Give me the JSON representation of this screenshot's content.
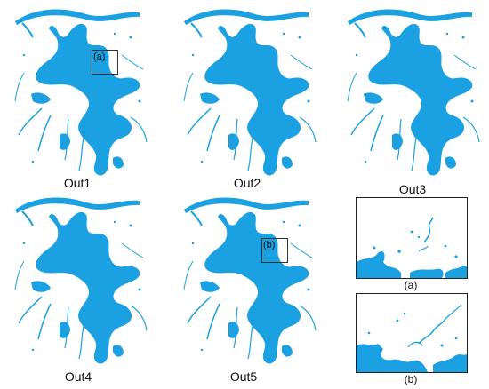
{
  "water_color": "#1ba1e2",
  "panels": [
    {
      "caption": "Out1",
      "roi_label": "(a)"
    },
    {
      "caption": "Out2",
      "roi_label": ""
    },
    {
      "caption": "Out3",
      "roi_label": ""
    },
    {
      "caption": "Out4",
      "roi_label": ""
    },
    {
      "caption": "Out5",
      "roi_label": "(b)"
    }
  ],
  "insets": [
    {
      "caption": "(a)"
    },
    {
      "caption": "(b)"
    }
  ]
}
